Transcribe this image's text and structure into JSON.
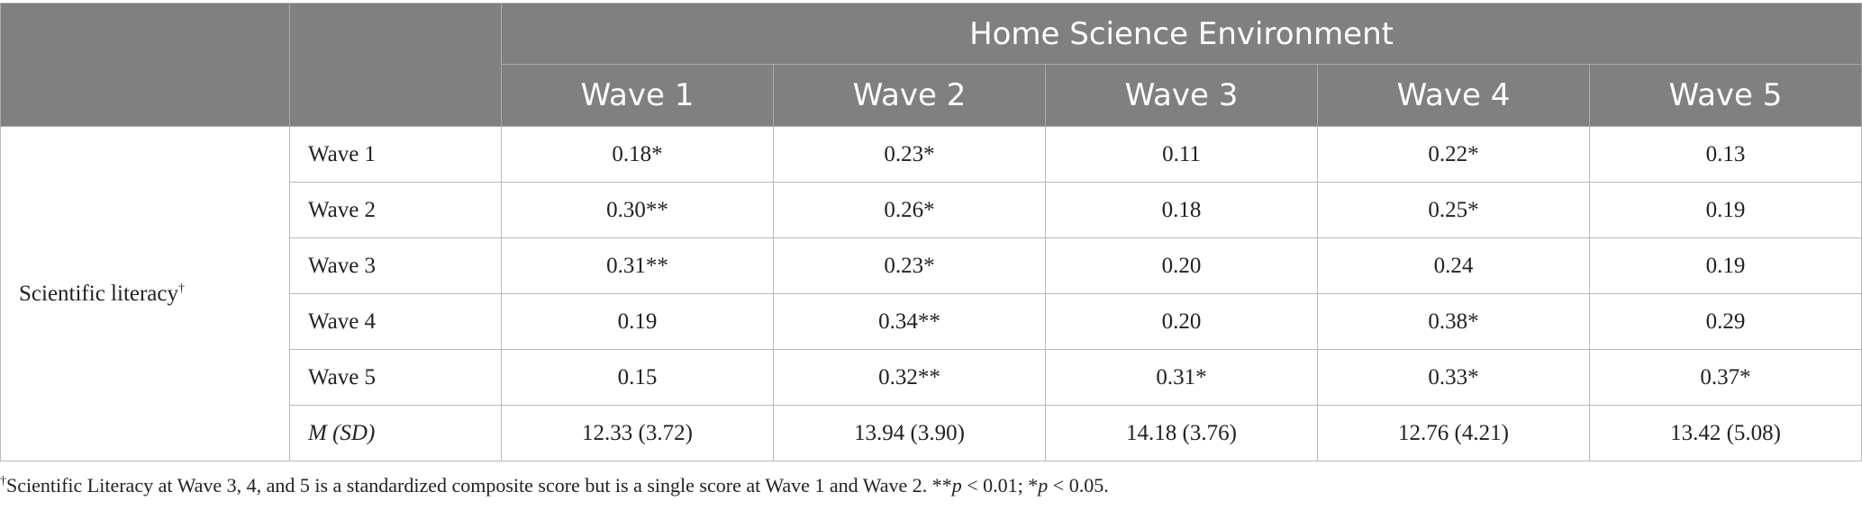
{
  "header": {
    "group_title": "Home Science Environment",
    "columns": [
      "Wave 1",
      "Wave 2",
      "Wave 3",
      "Wave 4",
      "Wave 5"
    ]
  },
  "stub_label": "Scientific literacy",
  "stub_mark": "†",
  "rows": [
    {
      "label": "Wave 1",
      "values": [
        "0.18*",
        "0.23*",
        "0.11",
        "0.22*",
        "0.13"
      ]
    },
    {
      "label": "Wave 2",
      "values": [
        "0.30**",
        "0.26*",
        "0.18",
        "0.25*",
        "0.19"
      ]
    },
    {
      "label": "Wave 3",
      "values": [
        "0.31**",
        "0.23*",
        "0.20",
        "0.24",
        "0.19"
      ]
    },
    {
      "label": "Wave 4",
      "values": [
        "0.19",
        "0.34**",
        "0.20",
        "0.38*",
        "0.29"
      ]
    },
    {
      "label": "Wave 5",
      "values": [
        "0.15",
        "0.32**",
        "0.31*",
        "0.33*",
        "0.37*"
      ]
    },
    {
      "label": "M (SD)",
      "values": [
        "12.33 (3.72)",
        "13.94 (3.90)",
        "14.18 (3.76)",
        "12.76 (4.21)",
        "13.42 (5.08)"
      ]
    }
  ],
  "footnote": {
    "mark": "†",
    "text": "Scientific Literacy at Wave 3, 4, and 5 is a standardized composite score but is a single score at Wave 1 and Wave 2. **",
    "p1": "p",
    "mid": " < 0.01; *",
    "p2": "p",
    "end": " < 0.05."
  }
}
